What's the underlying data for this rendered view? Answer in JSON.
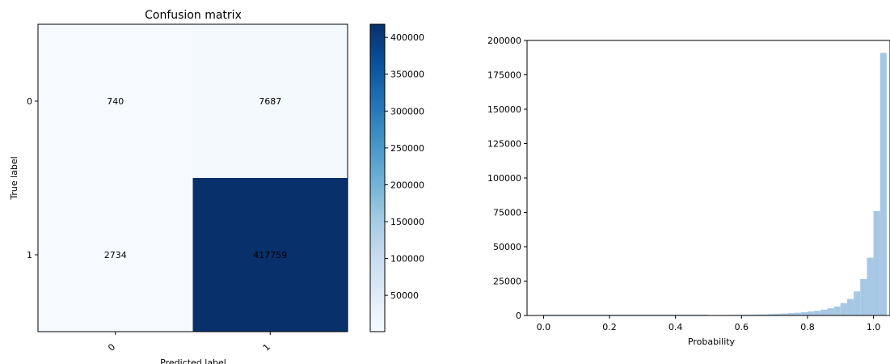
{
  "chart_data": [
    {
      "type": "heatmap",
      "title": "Confusion matrix",
      "xlabel": "Predicted label",
      "ylabel": "True label",
      "x_categories": [
        "0",
        "1"
      ],
      "y_categories": [
        "0",
        "1"
      ],
      "values": [
        [
          740,
          7687
        ],
        [
          2734,
          417759
        ]
      ],
      "cell_labels": [
        [
          "740",
          "7687"
        ],
        [
          "2734",
          "417759"
        ]
      ],
      "colormap": "Blues",
      "low_color": "#f7fbff",
      "high_color": "#08306b",
      "colorbar": {
        "min": 740,
        "max": 417759,
        "ticks": [
          50000,
          100000,
          150000,
          200000,
          250000,
          300000,
          350000,
          400000
        ],
        "tick_labels": [
          "50000",
          "100000",
          "150000",
          "200000",
          "250000",
          "300000",
          "350000",
          "400000"
        ]
      }
    },
    {
      "type": "histogram",
      "title": "",
      "xlabel": "Probability",
      "ylabel": "",
      "xlim": [
        -0.05,
        1.05
      ],
      "ylim": [
        0,
        200000
      ],
      "xticks": [
        0.0,
        0.2,
        0.4,
        0.6,
        0.8,
        1.0
      ],
      "xtick_labels": [
        "0.0",
        "0.2",
        "0.4",
        "0.6",
        "0.8",
        "1.0"
      ],
      "yticks": [
        0,
        25000,
        50000,
        75000,
        100000,
        125000,
        150000,
        175000,
        200000
      ],
      "ytick_labels": [
        "0",
        "25000",
        "50000",
        "75000",
        "100000",
        "125000",
        "150000",
        "175000",
        "200000"
      ],
      "bin_width": 0.02,
      "bins": [
        {
          "x": 0.5,
          "y": 300
        },
        {
          "x": 0.52,
          "y": 350
        },
        {
          "x": 0.54,
          "y": 400
        },
        {
          "x": 0.56,
          "y": 450
        },
        {
          "x": 0.58,
          "y": 500
        },
        {
          "x": 0.6,
          "y": 550
        },
        {
          "x": 0.62,
          "y": 600
        },
        {
          "x": 0.64,
          "y": 700
        },
        {
          "x": 0.66,
          "y": 800
        },
        {
          "x": 0.68,
          "y": 1000
        },
        {
          "x": 0.7,
          "y": 1200
        },
        {
          "x": 0.72,
          "y": 1400
        },
        {
          "x": 0.74,
          "y": 1700
        },
        {
          "x": 0.76,
          "y": 2000
        },
        {
          "x": 0.78,
          "y": 2400
        },
        {
          "x": 0.8,
          "y": 2900
        },
        {
          "x": 0.82,
          "y": 3400
        },
        {
          "x": 0.84,
          "y": 4200
        },
        {
          "x": 0.86,
          "y": 5200
        },
        {
          "x": 0.88,
          "y": 6500
        },
        {
          "x": 0.9,
          "y": 9000
        },
        {
          "x": 0.92,
          "y": 12000
        },
        {
          "x": 0.94,
          "y": 17500
        },
        {
          "x": 0.96,
          "y": 26500
        },
        {
          "x": 0.98,
          "y": 42000
        },
        {
          "x": 1.0,
          "y": 76000
        },
        {
          "x": 1.02,
          "y": 191000
        }
      ],
      "bar_color": "#a6c8e4"
    }
  ]
}
